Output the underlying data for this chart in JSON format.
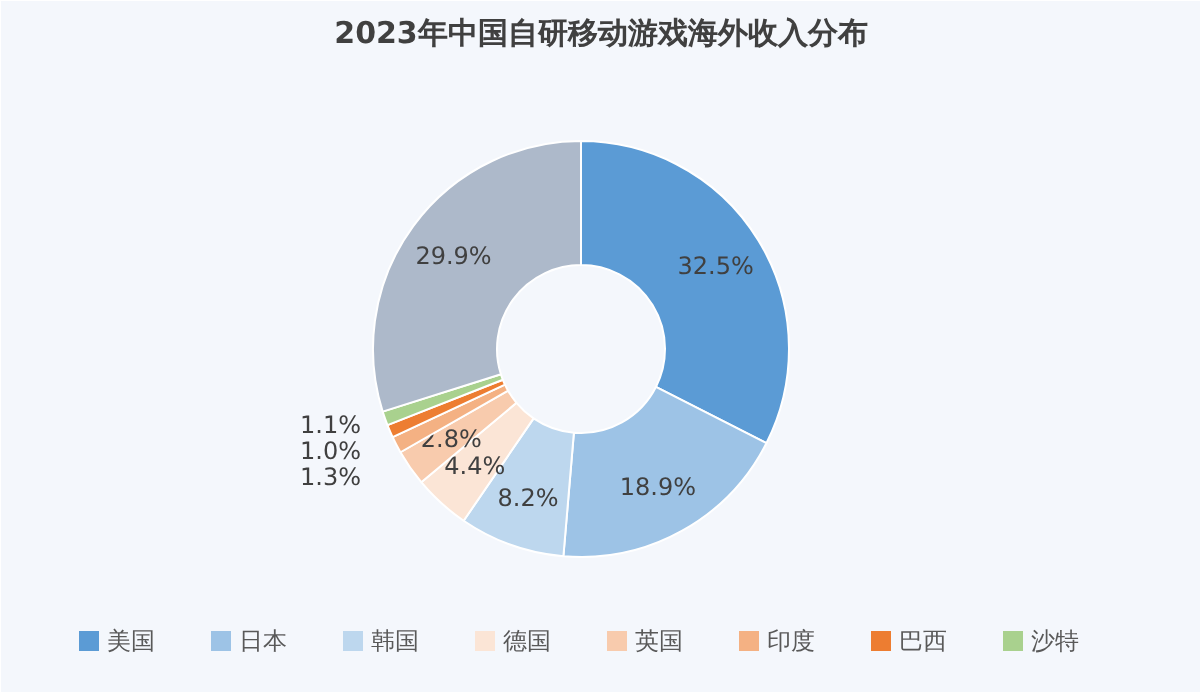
{
  "chart_data": {
    "type": "donut",
    "title": "2023年中国自研移动游戏海外收入分布",
    "categories": [
      "美国",
      "日本",
      "韩国",
      "德国",
      "英国",
      "印度",
      "巴西",
      "沙特",
      null
    ],
    "values": [
      32.5,
      18.9,
      8.2,
      4.4,
      2.8,
      1.3,
      1.0,
      1.1,
      29.9
    ],
    "value_labels": [
      "32.5%",
      "18.9%",
      "8.2%",
      "4.4%",
      "2.8%",
      "1.3%",
      "1.0%",
      "1.1%",
      "29.9%"
    ],
    "colors": [
      "#5b9bd5",
      "#9dc3e6",
      "#bdd7ee",
      "#fbe5d6",
      "#f8cbad",
      "#f4b183",
      "#ed7d31",
      "#a9d18e",
      "#adb9ca"
    ],
    "legend": "bottom"
  }
}
